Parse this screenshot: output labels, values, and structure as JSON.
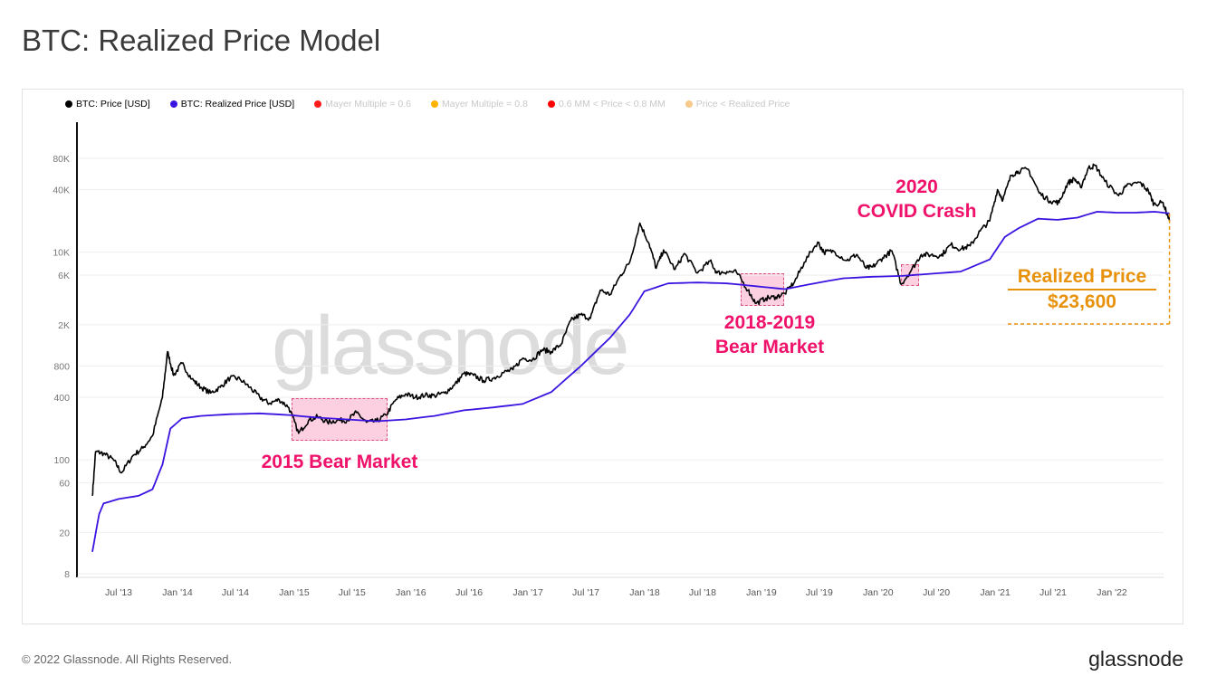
{
  "title": "BTC: Realized Price Model",
  "footer": {
    "copyright": "© 2022 Glassnode. All Rights Reserved.",
    "brand": "glassnode",
    "watermark": "glassnode"
  },
  "legend": [
    {
      "label": "BTC: Price [USD]",
      "color": "#000000",
      "active": true
    },
    {
      "label": "BTC: Realized Price [USD]",
      "color": "#3b13e0",
      "active": true
    },
    {
      "label": "Mayer Multiple = 0.6",
      "color": "#ff1a1a",
      "active": false
    },
    {
      "label": "Mayer Multiple = 0.8",
      "color": "#ffb300",
      "active": false
    },
    {
      "label": "0.6 MM < Price < 0.8 MM",
      "color": "#ff0000",
      "active": false
    },
    {
      "label": "Price < Realized Price",
      "color": "#f7c98a",
      "active": false
    }
  ],
  "annotations": {
    "bear2015": "2015 Bear Market",
    "bear2018_l1": "2018-2019",
    "bear2018_l2": "Bear Market",
    "covid_l1": "2020",
    "covid_l2": "COVID Crash",
    "realized_l1": "Realized Price",
    "realized_l2": "$23,600",
    "pink": "#f0126a",
    "orange": "#e8920c"
  },
  "chart_data": {
    "type": "line",
    "yscale": "log",
    "ylim": [
      8,
      100000
    ],
    "grid": true,
    "legend_position": "top-left",
    "y_ticks": [
      8,
      20,
      60,
      100,
      400,
      800,
      2000,
      6000,
      10000,
      40000,
      80000
    ],
    "y_tick_labels": [
      "8",
      "20",
      "60",
      "100",
      "400",
      "800",
      "2K",
      "6K",
      "10K",
      "40K",
      "80K"
    ],
    "x_ticks": [
      "2013-07-01",
      "2014-01-01",
      "2014-07-01",
      "2015-01-01",
      "2015-07-01",
      "2016-01-01",
      "2016-07-01",
      "2017-01-01",
      "2017-07-01",
      "2018-01-01",
      "2018-07-01",
      "2019-01-01",
      "2019-07-01",
      "2020-01-01",
      "2020-07-01",
      "2021-01-01",
      "2021-07-01",
      "2022-01-01"
    ],
    "x_tick_labels": [
      "Jul '13",
      "Jan '14",
      "Jul '14",
      "Jan '15",
      "Jul '15",
      "Jan '16",
      "Jul '16",
      "Jan '17",
      "Jul '17",
      "Jan '18",
      "Jul '18",
      "Jan '19",
      "Jul '19",
      "Jan '20",
      "Jul '20",
      "Jan '21",
      "Jul '21",
      "Jan '22"
    ],
    "xlim": [
      "2013-04-01",
      "2022-06-30"
    ],
    "series": [
      {
        "name": "BTC: Price [USD]",
        "color": "#000000",
        "points": [
          [
            "2013-04-10",
            45
          ],
          [
            "2013-04-20",
            120
          ],
          [
            "2013-05-15",
            115
          ],
          [
            "2013-06-15",
            100
          ],
          [
            "2013-07-10",
            75
          ],
          [
            "2013-08-15",
            110
          ],
          [
            "2013-09-15",
            130
          ],
          [
            "2013-10-15",
            170
          ],
          [
            "2013-11-15",
            400
          ],
          [
            "2013-12-01",
            1100
          ],
          [
            "2013-12-20",
            650
          ],
          [
            "2014-01-15",
            850
          ],
          [
            "2014-02-15",
            600
          ],
          [
            "2014-03-15",
            500
          ],
          [
            "2014-04-15",
            440
          ],
          [
            "2014-05-15",
            500
          ],
          [
            "2014-06-15",
            620
          ],
          [
            "2014-07-15",
            600
          ],
          [
            "2014-08-15",
            500
          ],
          [
            "2014-09-15",
            400
          ],
          [
            "2014-10-15",
            350
          ],
          [
            "2014-11-15",
            380
          ],
          [
            "2014-12-15",
            320
          ],
          [
            "2015-01-15",
            180
          ],
          [
            "2015-02-15",
            240
          ],
          [
            "2015-03-15",
            260
          ],
          [
            "2015-04-15",
            230
          ],
          [
            "2015-05-15",
            240
          ],
          [
            "2015-06-15",
            240
          ],
          [
            "2015-07-15",
            285
          ],
          [
            "2015-08-15",
            230
          ],
          [
            "2015-09-15",
            235
          ],
          [
            "2015-10-15",
            270
          ],
          [
            "2015-11-15",
            380
          ],
          [
            "2015-12-15",
            430
          ],
          [
            "2016-01-15",
            400
          ],
          [
            "2016-02-15",
            420
          ],
          [
            "2016-03-15",
            415
          ],
          [
            "2016-04-15",
            440
          ],
          [
            "2016-05-15",
            520
          ],
          [
            "2016-06-15",
            680
          ],
          [
            "2016-07-15",
            650
          ],
          [
            "2016-08-15",
            580
          ],
          [
            "2016-09-15",
            610
          ],
          [
            "2016-10-15",
            690
          ],
          [
            "2016-11-15",
            740
          ],
          [
            "2016-12-15",
            950
          ],
          [
            "2017-01-15",
            920
          ],
          [
            "2017-02-15",
            1150
          ],
          [
            "2017-03-15",
            1100
          ],
          [
            "2017-04-15",
            1300
          ],
          [
            "2017-05-15",
            2200
          ],
          [
            "2017-06-15",
            2500
          ],
          [
            "2017-07-15",
            2300
          ],
          [
            "2017-08-15",
            4300
          ],
          [
            "2017-09-15",
            3900
          ],
          [
            "2017-10-15",
            5800
          ],
          [
            "2017-11-15",
            8000
          ],
          [
            "2017-12-17",
            19000
          ],
          [
            "2018-01-15",
            12000
          ],
          [
            "2018-02-06",
            7000
          ],
          [
            "2018-03-01",
            10500
          ],
          [
            "2018-04-06",
            6800
          ],
          [
            "2018-05-05",
            9700
          ],
          [
            "2018-06-15",
            6300
          ],
          [
            "2018-07-25",
            8200
          ],
          [
            "2018-08-15",
            6300
          ],
          [
            "2018-09-15",
            6500
          ],
          [
            "2018-10-15",
            6400
          ],
          [
            "2018-11-20",
            4300
          ],
          [
            "2018-12-15",
            3200
          ],
          [
            "2019-01-15",
            3600
          ],
          [
            "2019-02-15",
            3700
          ],
          [
            "2019-03-15",
            4000
          ],
          [
            "2019-04-15",
            5200
          ],
          [
            "2019-05-15",
            8000
          ],
          [
            "2019-06-26",
            12500
          ],
          [
            "2019-07-15",
            10000
          ],
          [
            "2019-08-15",
            10200
          ],
          [
            "2019-09-25",
            8300
          ],
          [
            "2019-10-26",
            9500
          ],
          [
            "2019-11-25",
            7000
          ],
          [
            "2019-12-15",
            7200
          ],
          [
            "2020-01-15",
            8800
          ],
          [
            "2020-02-13",
            10300
          ],
          [
            "2020-03-13",
            4900
          ],
          [
            "2020-04-15",
            6800
          ],
          [
            "2020-05-15",
            9500
          ],
          [
            "2020-06-15",
            9400
          ],
          [
            "2020-07-15",
            9200
          ],
          [
            "2020-08-15",
            11800
          ],
          [
            "2020-09-15",
            10700
          ],
          [
            "2020-10-15",
            11500
          ],
          [
            "2020-11-15",
            16000
          ],
          [
            "2020-12-15",
            20000
          ],
          [
            "2021-01-08",
            40000
          ],
          [
            "2021-01-25",
            32000
          ],
          [
            "2021-02-20",
            55000
          ],
          [
            "2021-03-13",
            60000
          ],
          [
            "2021-04-14",
            63000
          ],
          [
            "2021-05-19",
            37000
          ],
          [
            "2021-06-22",
            31000
          ],
          [
            "2021-07-20",
            30000
          ],
          [
            "2021-08-15",
            46000
          ],
          [
            "2021-09-06",
            51000
          ],
          [
            "2021-09-25",
            42000
          ],
          [
            "2021-10-20",
            65000
          ],
          [
            "2021-11-10",
            68000
          ],
          [
            "2021-12-10",
            48000
          ],
          [
            "2022-01-22",
            35000
          ],
          [
            "2022-02-15",
            43000
          ],
          [
            "2022-03-28",
            47000
          ],
          [
            "2022-04-25",
            39000
          ],
          [
            "2022-05-12",
            29000
          ],
          [
            "2022-06-10",
            30000
          ],
          [
            "2022-06-30",
            20000
          ]
        ]
      },
      {
        "name": "BTC: Realized Price [USD]",
        "color": "#3b13e0",
        "points": [
          [
            "2013-04-10",
            13
          ],
          [
            "2013-05-01",
            30
          ],
          [
            "2013-05-15",
            38
          ],
          [
            "2013-07-01",
            42
          ],
          [
            "2013-09-01",
            45
          ],
          [
            "2013-10-15",
            52
          ],
          [
            "2013-11-15",
            90
          ],
          [
            "2013-12-10",
            200
          ],
          [
            "2014-01-15",
            250
          ],
          [
            "2014-03-15",
            265
          ],
          [
            "2014-06-15",
            275
          ],
          [
            "2014-09-15",
            280
          ],
          [
            "2014-12-15",
            270
          ],
          [
            "2015-03-15",
            255
          ],
          [
            "2015-06-15",
            245
          ],
          [
            "2015-09-15",
            235
          ],
          [
            "2015-12-15",
            245
          ],
          [
            "2016-03-15",
            265
          ],
          [
            "2016-06-15",
            300
          ],
          [
            "2016-09-15",
            320
          ],
          [
            "2016-12-15",
            345
          ],
          [
            "2017-03-15",
            450
          ],
          [
            "2017-06-15",
            800
          ],
          [
            "2017-09-15",
            1500
          ],
          [
            "2017-11-15",
            2500
          ],
          [
            "2017-12-31",
            4200
          ],
          [
            "2018-03-15",
            5000
          ],
          [
            "2018-06-15",
            5100
          ],
          [
            "2018-09-15",
            5000
          ],
          [
            "2018-12-15",
            4700
          ],
          [
            "2019-03-15",
            4400
          ],
          [
            "2019-06-15",
            5000
          ],
          [
            "2019-09-15",
            5600
          ],
          [
            "2019-12-15",
            5800
          ],
          [
            "2020-03-15",
            5900
          ],
          [
            "2020-06-15",
            6200
          ],
          [
            "2020-09-15",
            6500
          ],
          [
            "2020-12-15",
            8500
          ],
          [
            "2021-01-31",
            14000
          ],
          [
            "2021-03-15",
            17000
          ],
          [
            "2021-05-15",
            21000
          ],
          [
            "2021-07-15",
            20500
          ],
          [
            "2021-09-15",
            21500
          ],
          [
            "2021-11-15",
            24500
          ],
          [
            "2022-01-15",
            24000
          ],
          [
            "2022-03-15",
            24000
          ],
          [
            "2022-05-15",
            24500
          ],
          [
            "2022-06-30",
            23600
          ]
        ]
      }
    ]
  }
}
